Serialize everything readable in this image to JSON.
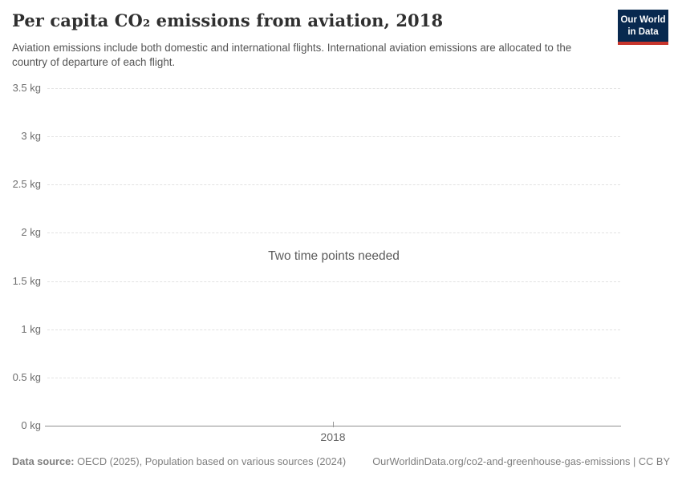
{
  "header": {
    "title": "Per capita CO₂ emissions from aviation, 2018",
    "subtitle": "Aviation emissions include both domestic and international flights. International aviation emissions are allocated to the country of departure of each flight.",
    "logo": {
      "line1": "Our World",
      "line2": "in Data"
    }
  },
  "chart_data": {
    "type": "line",
    "title": "Per capita CO₂ emissions from aviation, 2018",
    "series": [],
    "empty_message": "Two time points needed",
    "x_tick_labels": [
      "2018"
    ],
    "y_ticks": [
      {
        "value": 3.5,
        "label": "3.5 kg"
      },
      {
        "value": 3,
        "label": "3 kg"
      },
      {
        "value": 2.5,
        "label": "2.5 kg"
      },
      {
        "value": 2,
        "label": "2 kg"
      },
      {
        "value": 1.5,
        "label": "1.5 kg"
      },
      {
        "value": 1,
        "label": "1 kg"
      },
      {
        "value": 0.5,
        "label": "0.5 kg"
      },
      {
        "value": 0,
        "label": "0 kg"
      }
    ],
    "ylim": [
      0,
      3.5
    ],
    "y_unit": "kg",
    "grid": "horizontal-dashed",
    "legend": "none"
  },
  "footer": {
    "data_source_label": "Data source:",
    "data_source_text": " OECD (2025), Population based on various sources (2024)",
    "link": "OurWorldinData.org/co2-and-greenhouse-gas-emissions | CC BY"
  },
  "colors": {
    "logo_background": "#08294f",
    "logo_stripe": "#c7352c",
    "title_text": "#2f2f2f",
    "subtitle_text": "#555555",
    "tick_label_text": "#6e6e6e",
    "gridline": "#e2e2e2",
    "axis_line": "#8f8f8f",
    "empty_message_text": "#5b5b5b",
    "footer_text": "#7f7f7f"
  }
}
